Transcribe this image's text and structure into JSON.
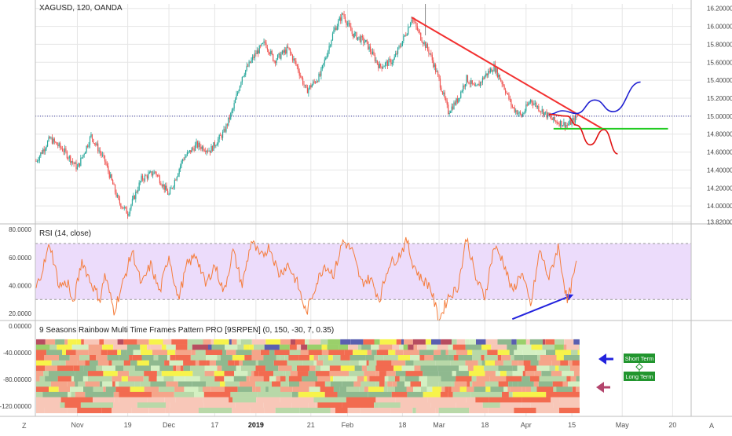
{
  "symbol_title": "XAGUSD, 120, OANDA",
  "rsi_title": "RSI (14, close)",
  "rainbow_title": "9 Seasons Rainbow Multi Time Frames Pattern PRO [9SRPEN] (0, 150, -30, 7, 0.35)",
  "labels": {
    "short_term": "Short Term",
    "long_term": "Long Term"
  },
  "corner_left": "Z",
  "corner_right": "A",
  "colors": {
    "candle_up": "#26a69a",
    "candle_down": "#ef5350",
    "trendline": "#f23030",
    "support": "#22cc22",
    "projection_up": "#1f1fd1",
    "projection_down": "#e01010",
    "rsi_line": "#f57c3a",
    "rsi_band": "#ecdcfb",
    "grid": "#e6e6e6",
    "annot_blue": "#2222dd",
    "annot_maroon": "#b3446c",
    "label_green": "#21952e"
  },
  "chart_data": [
    {
      "type": "candlestick",
      "title": "XAGUSD, 120, OANDA",
      "y_ticks": [
        "16.20000",
        "16.00000",
        "15.80000",
        "15.60000",
        "15.40000",
        "15.20000",
        "15.00000",
        "14.80000",
        "14.60000",
        "14.40000",
        "14.20000",
        "14.00000",
        "13.82000"
      ],
      "ylim": [
        13.8,
        16.25
      ],
      "x_ticks": [
        "Nov",
        "19",
        "Dec",
        "17",
        "2019",
        "21",
        "Feb",
        "18",
        "Mar",
        "18",
        "Apr",
        "15",
        "May",
        "20"
      ],
      "path": [
        [
          0,
          14.5
        ],
        [
          3,
          14.75
        ],
        [
          6,
          14.62
        ],
        [
          9,
          14.42
        ],
        [
          12,
          14.78
        ],
        [
          15,
          14.5
        ],
        [
          18,
          14.05
        ],
        [
          20,
          13.92
        ],
        [
          23,
          14.3
        ],
        [
          26,
          14.38
        ],
        [
          29,
          14.12
        ],
        [
          32,
          14.52
        ],
        [
          35,
          14.68
        ],
        [
          38,
          14.62
        ],
        [
          41,
          14.82
        ],
        [
          43,
          15.08
        ],
        [
          45,
          15.45
        ],
        [
          48,
          15.7
        ],
        [
          50,
          15.82
        ],
        [
          52,
          15.62
        ],
        [
          55,
          15.75
        ],
        [
          57,
          15.55
        ],
        [
          59,
          15.28
        ],
        [
          62,
          15.45
        ],
        [
          65,
          15.95
        ],
        [
          67,
          16.14
        ],
        [
          69,
          15.92
        ],
        [
          72,
          15.82
        ],
        [
          75,
          15.55
        ],
        [
          78,
          15.62
        ],
        [
          81,
          15.95
        ],
        [
          82,
          16.1
        ],
        [
          84,
          15.88
        ],
        [
          86,
          15.7
        ],
        [
          88,
          15.4
        ],
        [
          90,
          15.05
        ],
        [
          92,
          15.18
        ],
        [
          94,
          15.42
        ],
        [
          96,
          15.3
        ],
        [
          98,
          15.45
        ],
        [
          100,
          15.55
        ],
        [
          102,
          15.35
        ],
        [
          104,
          15.1
        ],
        [
          106,
          15.0
        ],
        [
          108,
          15.18
        ],
        [
          110,
          15.08
        ],
        [
          113,
          14.95
        ],
        [
          116,
          14.9
        ],
        [
          118,
          14.98
        ]
      ],
      "annotations": {
        "horizontal_level": 15.0,
        "trendline": [
          [
            82,
            16.1
          ],
          [
            124,
            14.85
          ]
        ],
        "support": [
          [
            113,
            14.86
          ],
          [
            138,
            14.86
          ]
        ],
        "projection_up": [
          [
            112,
            15.02
          ],
          [
            115,
            15.06
          ],
          [
            118,
            15.03
          ],
          [
            122,
            15.18
          ],
          [
            126,
            15.05
          ],
          [
            132,
            15.38
          ]
        ],
        "projection_down": [
          [
            112,
            15.02
          ],
          [
            116,
            15.0
          ],
          [
            118,
            14.9
          ],
          [
            121,
            14.68
          ],
          [
            124,
            14.85
          ],
          [
            127,
            14.58
          ]
        ]
      }
    },
    {
      "type": "line",
      "title": "RSI (14, close)",
      "y_ticks": [
        "80.0000",
        "60.0000",
        "40.0000",
        "20.0000"
      ],
      "ylim": [
        15,
        84
      ],
      "band": [
        30,
        70
      ],
      "path": [
        [
          0,
          38
        ],
        [
          2,
          58
        ],
        [
          3,
          70
        ],
        [
          5,
          40
        ],
        [
          7,
          42
        ],
        [
          8,
          25
        ],
        [
          10,
          58
        ],
        [
          12,
          42
        ],
        [
          14,
          30
        ],
        [
          15,
          48
        ],
        [
          17,
          22
        ],
        [
          19,
          42
        ],
        [
          21,
          65
        ],
        [
          23,
          40
        ],
        [
          25,
          55
        ],
        [
          27,
          35
        ],
        [
          29,
          62
        ],
        [
          31,
          30
        ],
        [
          33,
          55
        ],
        [
          35,
          62
        ],
        [
          37,
          40
        ],
        [
          39,
          55
        ],
        [
          41,
          35
        ],
        [
          43,
          65
        ],
        [
          45,
          40
        ],
        [
          47,
          72
        ],
        [
          49,
          60
        ],
        [
          51,
          68
        ],
        [
          53,
          48
        ],
        [
          55,
          55
        ],
        [
          57,
          42
        ],
        [
          59,
          20
        ],
        [
          61,
          40
        ],
        [
          63,
          55
        ],
        [
          65,
          48
        ],
        [
          67,
          72
        ],
        [
          69,
          65
        ],
        [
          71,
          42
        ],
        [
          73,
          45
        ],
        [
          75,
          30
        ],
        [
          77,
          55
        ],
        [
          79,
          60
        ],
        [
          81,
          72
        ],
        [
          82,
          58
        ],
        [
          84,
          45
        ],
        [
          86,
          40
        ],
        [
          88,
          15
        ],
        [
          90,
          32
        ],
        [
          92,
          38
        ],
        [
          93,
          55
        ],
        [
          94,
          75
        ],
        [
          96,
          45
        ],
        [
          98,
          32
        ],
        [
          100,
          68
        ],
        [
          102,
          58
        ],
        [
          104,
          35
        ],
        [
          106,
          50
        ],
        [
          108,
          25
        ],
        [
          110,
          65
        ],
        [
          112,
          45
        ],
        [
          114,
          68
        ],
        [
          116,
          28
        ],
        [
          118,
          55
        ],
        [
          119,
          45
        ]
      ],
      "annotation_arrow": [
        [
          104,
          16
        ],
        [
          117,
          33
        ]
      ]
    },
    {
      "type": "heatmap",
      "title": "9 Seasons Rainbow Multi Time Frames Pattern PRO [9SRPEN] (0, 150, -30, 7, 0.35)",
      "y_ticks": [
        "0.00000",
        "-40.00000",
        "-80.00000",
        "-120.00000"
      ],
      "ylim": [
        -135,
        8
      ],
      "rows": 14,
      "palette": [
        "#f26b50",
        "#f5a58a",
        "#8fb98f",
        "#b8d8a8",
        "#d4f0c2",
        "#f7f34a",
        "#9ad06a",
        "#5a5fb0",
        "#b74d60",
        "#f8c7b8"
      ]
    }
  ]
}
